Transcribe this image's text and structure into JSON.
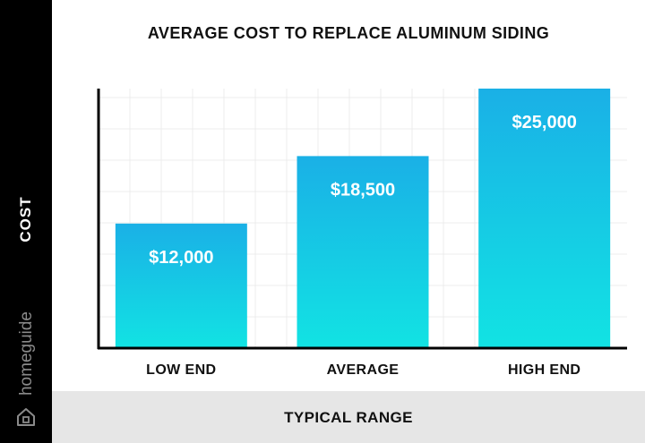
{
  "chart_data": {
    "type": "bar",
    "title": "AVERAGE COST TO REPLACE ALUMINUM SIDING",
    "xlabel": "TYPICAL RANGE",
    "ylabel": "COST",
    "categories": [
      "LOW END",
      "AVERAGE",
      "HIGH END"
    ],
    "values": [
      12000,
      18500,
      25000
    ],
    "value_labels": [
      "$12,000",
      "$18,500",
      "$25,000"
    ],
    "ylim": [
      0,
      25000
    ],
    "grid": true,
    "colors": {
      "bar_top": "#1ab0e6",
      "bar_bottom": "#12e3e3"
    }
  },
  "branding": {
    "logo_text": "homeguide",
    "logo_icon": "house-icon"
  }
}
